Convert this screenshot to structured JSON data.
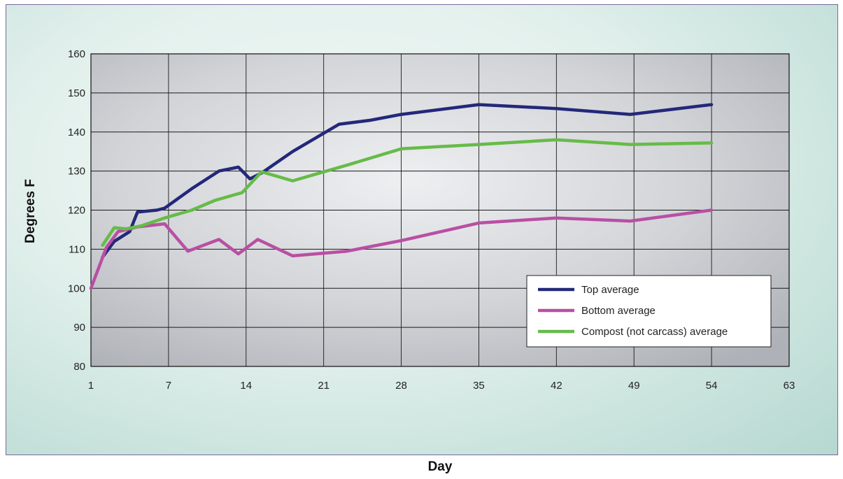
{
  "chart_data": {
    "type": "line",
    "xlabel": "Day",
    "ylabel": "Degrees F",
    "ylim": [
      80,
      160
    ],
    "yticks": [
      80,
      90,
      100,
      110,
      120,
      130,
      140,
      150,
      160
    ],
    "categories": [
      "1",
      "7",
      "14",
      "21",
      "28",
      "35",
      "42",
      "49",
      "54",
      "63"
    ],
    "grid": true,
    "legend_position": "bottom-right",
    "series": [
      {
        "name": "Top average",
        "color": "#23287a",
        "points": [
          [
            0.15,
            108
          ],
          [
            0.3,
            112
          ],
          [
            0.5,
            114.5
          ],
          [
            0.6,
            119.5
          ],
          [
            0.85,
            120
          ],
          [
            0.95,
            120.5
          ],
          [
            1.3,
            125.5
          ],
          [
            1.65,
            130
          ],
          [
            1.9,
            131
          ],
          [
            2.05,
            128
          ],
          [
            2.2,
            129.5
          ],
          [
            2.6,
            135
          ],
          [
            3.2,
            142
          ],
          [
            3.6,
            143
          ],
          [
            4.0,
            144.5
          ],
          [
            5.0,
            147
          ],
          [
            6.0,
            146
          ],
          [
            6.95,
            144.5
          ],
          [
            8.0,
            147
          ]
        ]
      },
      {
        "name": "Bottom average",
        "color": "#b94fa3",
        "points": [
          [
            0,
            100
          ],
          [
            0.2,
            110.5
          ],
          [
            0.35,
            114.5
          ],
          [
            0.5,
            115.2
          ],
          [
            0.6,
            115.7
          ],
          [
            0.95,
            116.5
          ],
          [
            1.25,
            109.5
          ],
          [
            1.65,
            112.5
          ],
          [
            1.9,
            108.8
          ],
          [
            2.15,
            112.5
          ],
          [
            2.6,
            108.3
          ],
          [
            3.3,
            109.5
          ],
          [
            4.0,
            112.2
          ],
          [
            5.0,
            116.7
          ],
          [
            6.0,
            118
          ],
          [
            6.95,
            117.2
          ],
          [
            8.0,
            120
          ]
        ]
      },
      {
        "name": "Compost (not carcass) average",
        "color": "#66bb48",
        "points": [
          [
            0.15,
            111
          ],
          [
            0.3,
            115.5
          ],
          [
            0.45,
            115.2
          ],
          [
            0.65,
            116
          ],
          [
            0.95,
            118
          ],
          [
            1.3,
            120
          ],
          [
            1.6,
            122.5
          ],
          [
            1.95,
            124.5
          ],
          [
            2.2,
            129.8
          ],
          [
            2.6,
            127.5
          ],
          [
            3.3,
            131.5
          ],
          [
            4.0,
            135.7
          ],
          [
            5.0,
            136.8
          ],
          [
            6.0,
            138
          ],
          [
            6.95,
            136.8
          ],
          [
            8.0,
            137.2
          ]
        ]
      }
    ]
  }
}
